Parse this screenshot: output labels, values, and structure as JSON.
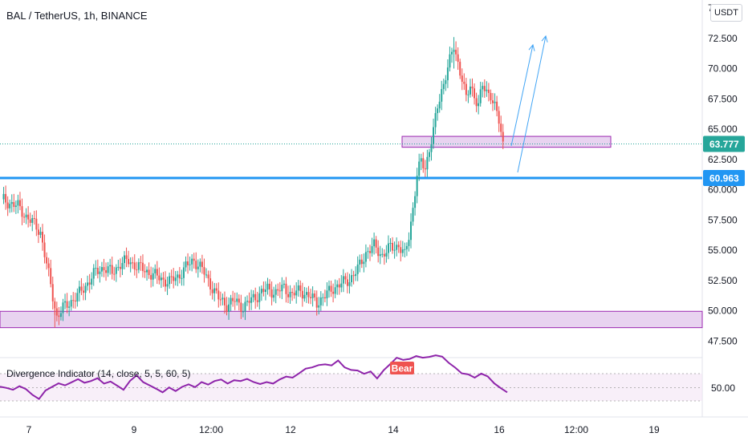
{
  "header": {
    "title": "BAL / TetherUS, 1h, BINANCE",
    "currency_button": "USDT"
  },
  "colors": {
    "up": "#26a69a",
    "down": "#ef5350",
    "level_line": "#2196f3",
    "zone_fill": "#e8d3f0",
    "zone_border": "#9c27b0",
    "indicator_line": "#8e24aa",
    "arrow": "#42a5f5",
    "current_price_tag": "#26a69a",
    "level_tag": "#2196f3",
    "bear_badge": "#ef5350"
  },
  "chart_data": [
    {
      "type": "candlestick",
      "title": "BAL / TetherUS, 1h, BINANCE",
      "y_axis_ticks": [
        "75.000",
        "72.500",
        "70.000",
        "67.500",
        "65.000",
        "62.500",
        "60.000",
        "57.500",
        "55.000",
        "52.500",
        "50.000",
        "47.500"
      ],
      "x_axis_ticks": [
        "7",
        "9",
        "12:00",
        "12",
        "14",
        "16",
        "12:00",
        "19"
      ],
      "ylim": [
        46.5,
        75.3
      ],
      "price_path": [
        {
          "t": 0,
          "p": 59.2
        },
        {
          "t": 4,
          "p": 58.9
        },
        {
          "t": 8,
          "p": 58.6
        },
        {
          "t": 12,
          "p": 57.8
        },
        {
          "t": 16,
          "p": 57.1
        },
        {
          "t": 19,
          "p": 56.5
        },
        {
          "t": 22,
          "p": 53.8
        },
        {
          "t": 25,
          "p": 51.2
        },
        {
          "t": 27,
          "p": 49.5
        },
        {
          "t": 30,
          "p": 50.2
        },
        {
          "t": 34,
          "p": 50.8
        },
        {
          "t": 38,
          "p": 51.4
        },
        {
          "t": 42,
          "p": 52.3
        },
        {
          "t": 46,
          "p": 53.2
        },
        {
          "t": 50,
          "p": 53.6
        },
        {
          "t": 54,
          "p": 53.1
        },
        {
          "t": 58,
          "p": 53.9
        },
        {
          "t": 62,
          "p": 54.1
        },
        {
          "t": 66,
          "p": 53.7
        },
        {
          "t": 70,
          "p": 53.3
        },
        {
          "t": 74,
          "p": 53.0
        },
        {
          "t": 78,
          "p": 52.6
        },
        {
          "t": 82,
          "p": 52.4
        },
        {
          "t": 86,
          "p": 52.8
        },
        {
          "t": 90,
          "p": 53.6
        },
        {
          "t": 94,
          "p": 54.2
        },
        {
          "t": 98,
          "p": 53.4
        },
        {
          "t": 102,
          "p": 52.2
        },
        {
          "t": 106,
          "p": 51.0
        },
        {
          "t": 110,
          "p": 50.5
        },
        {
          "t": 114,
          "p": 50.8
        },
        {
          "t": 118,
          "p": 50.3
        },
        {
          "t": 122,
          "p": 50.9
        },
        {
          "t": 126,
          "p": 51.4
        },
        {
          "t": 130,
          "p": 51.8
        },
        {
          "t": 134,
          "p": 51.5
        },
        {
          "t": 138,
          "p": 51.9
        },
        {
          "t": 142,
          "p": 51.3
        },
        {
          "t": 146,
          "p": 51.7
        },
        {
          "t": 150,
          "p": 51.2
        },
        {
          "t": 154,
          "p": 50.7
        },
        {
          "t": 158,
          "p": 51.2
        },
        {
          "t": 162,
          "p": 51.9
        },
        {
          "t": 166,
          "p": 52.2
        },
        {
          "t": 170,
          "p": 52.6
        },
        {
          "t": 174,
          "p": 53.4
        },
        {
          "t": 178,
          "p": 54.8
        },
        {
          "t": 182,
          "p": 55.3
        },
        {
          "t": 186,
          "p": 54.6
        },
        {
          "t": 190,
          "p": 55.2
        },
        {
          "t": 194,
          "p": 55.4
        },
        {
          "t": 197,
          "p": 54.5
        },
        {
          "t": 199,
          "p": 56.2
        },
        {
          "t": 201,
          "p": 58.5
        },
        {
          "t": 203,
          "p": 61.2
        },
        {
          "t": 205,
          "p": 62.3
        },
        {
          "t": 207,
          "p": 61.8
        },
        {
          "t": 209,
          "p": 63.4
        },
        {
          "t": 211,
          "p": 64.8
        },
        {
          "t": 213,
          "p": 66.8
        },
        {
          "t": 215,
          "p": 68.2
        },
        {
          "t": 217,
          "p": 69.5
        },
        {
          "t": 219,
          "p": 70.6
        },
        {
          "t": 221,
          "p": 71.8
        },
        {
          "t": 223,
          "p": 70.5
        },
        {
          "t": 225,
          "p": 69.2
        },
        {
          "t": 227,
          "p": 67.4
        },
        {
          "t": 229,
          "p": 68.6
        },
        {
          "t": 231,
          "p": 67.8
        },
        {
          "t": 233,
          "p": 67.0
        },
        {
          "t": 235,
          "p": 68.5
        },
        {
          "t": 237,
          "p": 68.1
        },
        {
          "t": 239,
          "p": 67.9
        },
        {
          "t": 241,
          "p": 66.8
        },
        {
          "t": 243,
          "p": 65.6
        },
        {
          "t": 245,
          "p": 63.8
        }
      ],
      "levels": [
        {
          "label": "60.963",
          "value": 60.963
        }
      ],
      "current_price": {
        "label": "63.777",
        "value": 63.777
      },
      "zones": [
        {
          "from": 48.6,
          "to": 49.95
        },
        {
          "from": 63.5,
          "to": 64.4
        }
      ]
    },
    {
      "type": "line",
      "title": "Divergence Indicator (14, close, 5, 5, 60, 5)",
      "y_axis_ticks": [
        "50.00"
      ],
      "badge": "Bear",
      "values": [
        50.4,
        49.9,
        49.2,
        50.6,
        49.4,
        47.2,
        45.6,
        48.9,
        50.3,
        51.7,
        50.9,
        52.1,
        53.3,
        51.9,
        52.6,
        53.7,
        51.6,
        52.4,
        50.8,
        49.2,
        52.7,
        54.8,
        52.2,
        50.9,
        49.6,
        48.2,
        50.1,
        48.7,
        50.3,
        51.3,
        50.2,
        52.2,
        51.2,
        52.6,
        53.2,
        51.6,
        52.9,
        52.6,
        53.4,
        52.2,
        51.4,
        52.2,
        51.6,
        53.2,
        54.3,
        53.9,
        55.6,
        57.4,
        57.9,
        58.8,
        59.1,
        58.7,
        60.6,
        57.9,
        56.9,
        56.7,
        55.4,
        56.3,
        53.6,
        56.8,
        59.2,
        61.7,
        60.8,
        61.2,
        62.3,
        61.7,
        62.0,
        62.6,
        62.1,
        59.7,
        57.8,
        55.6,
        55.2,
        53.9,
        55.5,
        54.4,
        51.7,
        49.8,
        48.2
      ]
    }
  ]
}
